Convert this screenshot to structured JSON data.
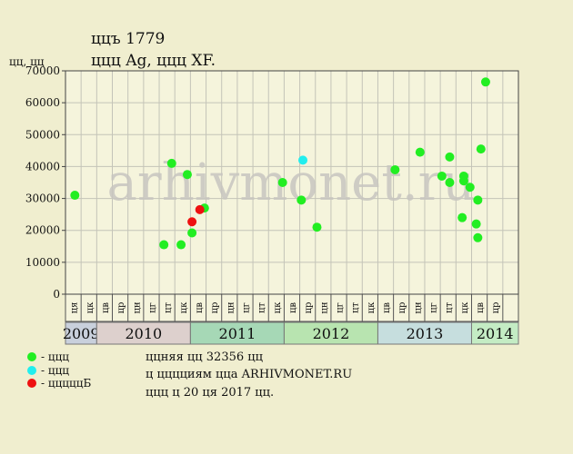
{
  "header": {
    "title": "ццъ 1779",
    "subtitle": "ццц Ag, ццц XF.",
    "y_unit": "цц, цц"
  },
  "legend": [
    {
      "label": "- ццц",
      "color": "#22ee22"
    },
    {
      "label": "- ццц",
      "color": "#22eeee"
    },
    {
      "label": "- цццццБ",
      "color": "#ee1111"
    }
  ],
  "info": {
    "line1": "ццняя цц 32356 цц",
    "line2": "ц цццциям ццa ARHIVMONET.RU",
    "line3": "ццц ц 20 ця 2017 цц."
  },
  "watermark": "arhivmonet.ru",
  "chart_data": {
    "type": "scatter",
    "ylim": [
      0,
      70000
    ],
    "yticks": [
      0,
      10000,
      20000,
      30000,
      40000,
      50000,
      60000,
      70000
    ],
    "x_range": [
      0,
      29
    ],
    "month_labels": [
      "ця",
      "цк",
      "цв",
      "цр",
      "цн",
      "цг",
      "цт",
      "цк",
      "цв",
      "цр",
      "цн",
      "цг",
      "цт",
      "цк",
      "цв",
      "цр",
      "цн",
      "цг",
      "цт",
      "цк",
      "цв",
      "цр",
      "цн",
      "цг",
      "цт",
      "цк",
      "цв",
      "цр"
    ],
    "years": [
      {
        "label": "2009",
        "from": 0,
        "to": 2,
        "color": "#c9d0dc"
      },
      {
        "label": "2010",
        "from": 2,
        "to": 8,
        "color": "#ddd0cd"
      },
      {
        "label": "2011",
        "from": 8,
        "to": 14,
        "color": "#a6d8b6"
      },
      {
        "label": "2012",
        "from": 14,
        "to": 20,
        "color": "#b8e4b0"
      },
      {
        "label": "2013",
        "from": 20,
        "to": 26,
        "color": "#c6dede"
      },
      {
        "label": "2014",
        "from": 26,
        "to": 29,
        "color": "#c4ecc4"
      }
    ],
    "points": [
      {
        "x": 0.6,
        "y": 31000,
        "t": "normal"
      },
      {
        "x": 6.3,
        "y": 15500,
        "t": "normal"
      },
      {
        "x": 6.8,
        "y": 41000,
        "t": "normal"
      },
      {
        "x": 7.4,
        "y": 15500,
        "t": "normal"
      },
      {
        "x": 7.8,
        "y": 37500,
        "t": "normal"
      },
      {
        "x": 8.1,
        "y": 19200,
        "t": "normal"
      },
      {
        "x": 8.9,
        "y": 27000,
        "t": "normal"
      },
      {
        "x": 13.9,
        "y": 35000,
        "t": "normal"
      },
      {
        "x": 15.1,
        "y": 29500,
        "t": "normal"
      },
      {
        "x": 16.1,
        "y": 21000,
        "t": "normal"
      },
      {
        "x": 21.1,
        "y": 39000,
        "t": "normal"
      },
      {
        "x": 22.7,
        "y": 44500,
        "t": "normal"
      },
      {
        "x": 24.1,
        "y": 37000,
        "t": "normal"
      },
      {
        "x": 24.6,
        "y": 43000,
        "t": "normal"
      },
      {
        "x": 24.6,
        "y": 35000,
        "t": "normal"
      },
      {
        "x": 25.4,
        "y": 24000,
        "t": "normal"
      },
      {
        "x": 25.5,
        "y": 37000,
        "t": "normal"
      },
      {
        "x": 25.5,
        "y": 35500,
        "t": "normal"
      },
      {
        "x": 25.9,
        "y": 33500,
        "t": "normal"
      },
      {
        "x": 26.3,
        "y": 22000,
        "t": "normal"
      },
      {
        "x": 26.4,
        "y": 29500,
        "t": "normal"
      },
      {
        "x": 26.4,
        "y": 17700,
        "t": "normal"
      },
      {
        "x": 26.6,
        "y": 45500,
        "t": "normal"
      },
      {
        "x": 26.9,
        "y": 66500,
        "t": "normal"
      },
      {
        "x": 15.2,
        "y": 42000,
        "t": "special"
      },
      {
        "x": 8.1,
        "y": 22700,
        "t": "auction"
      },
      {
        "x": 8.6,
        "y": 26500,
        "t": "auction"
      }
    ]
  }
}
